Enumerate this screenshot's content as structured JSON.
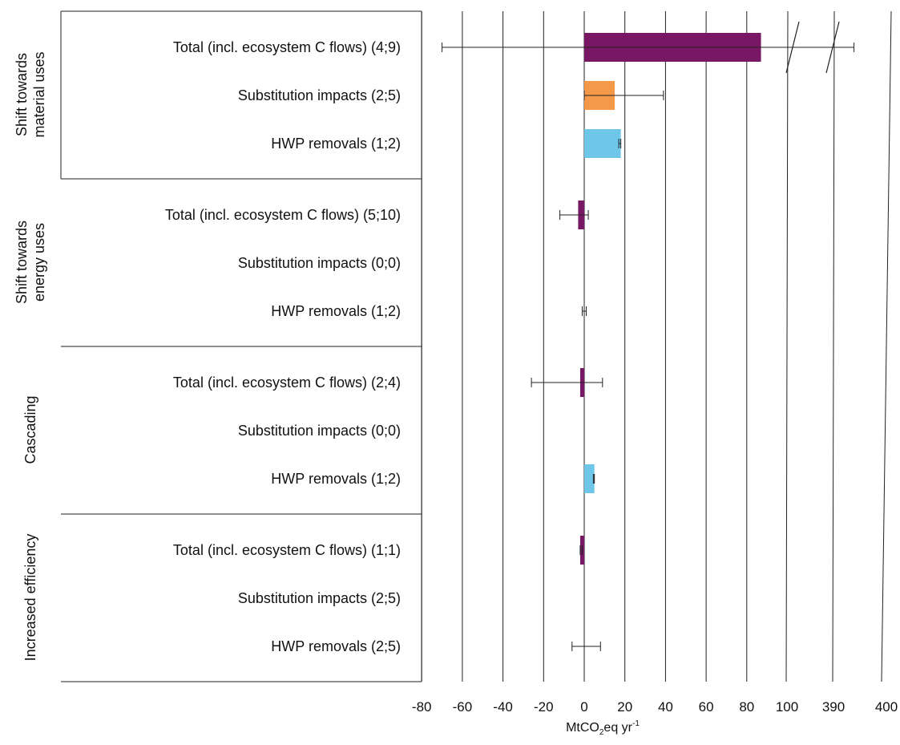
{
  "colors": {
    "total": "#781763",
    "substitution": "#f4984a",
    "hwp": "#6ec6e8",
    "lines": "#222222"
  },
  "chart_data": {
    "type": "bar",
    "orientation": "horizontal",
    "xlabel_main": "MtCO",
    "xlabel_sub": "2",
    "xlabel_tail": "eq yr",
    "xlabel_sup": "-1",
    "ticks": [
      {
        "label": "-80",
        "value": -80
      },
      {
        "label": "-60",
        "value": -60
      },
      {
        "label": "-40",
        "value": -40
      },
      {
        "label": "-20",
        "value": -20
      },
      {
        "label": "0",
        "value": 0
      },
      {
        "label": "20",
        "value": 20
      },
      {
        "label": "40",
        "value": 40
      },
      {
        "label": "60",
        "value": 60
      },
      {
        "label": "80",
        "value": 80
      },
      {
        "label": "100",
        "value": 100
      },
      {
        "label": "390",
        "value": 390
      },
      {
        "label": "400",
        "value": 400
      }
    ],
    "axis_break": {
      "from": 100,
      "to": 390
    },
    "grid": true,
    "groups": [
      {
        "name": "Shift towards material uses",
        "name_lines": [
          "Shift towards",
          "material uses"
        ],
        "rows": [
          {
            "label": "Total (incl. ecosystem C flows) (4;9)",
            "series": "total",
            "value": 87,
            "err_low": -70,
            "err_high": 394
          },
          {
            "label": "Substitution impacts (2;5)",
            "series": "substitution",
            "value": 15,
            "err_low": 0,
            "err_high": 39
          },
          {
            "label": "HWP removals (1;2)",
            "series": "hwp",
            "value": 18,
            "err_low": 17,
            "err_high": 18
          }
        ]
      },
      {
        "name": "Shift towards energy uses",
        "name_lines": [
          "Shift towards",
          "energy uses"
        ],
        "rows": [
          {
            "label": "Total (incl. ecosystem C flows) (5;10)",
            "series": "total",
            "value": -3,
            "err_low": -12,
            "err_high": 2
          },
          {
            "label": "Substitution impacts (0;0)",
            "series": "substitution",
            "value": null,
            "err_low": null,
            "err_high": null
          },
          {
            "label": "HWP removals (1;2)",
            "series": "hwp",
            "value": 0,
            "err_low": -1,
            "err_high": 1
          }
        ]
      },
      {
        "name": "Cascading",
        "name_lines": [
          "Cascading"
        ],
        "rows": [
          {
            "label": "Total (incl. ecosystem C flows) (2;4)",
            "series": "total",
            "value": -2,
            "err_low": -26,
            "err_high": 9
          },
          {
            "label": "Substitution impacts (0;0)",
            "series": "substitution",
            "value": null,
            "err_low": null,
            "err_high": null
          },
          {
            "label": "HWP removals (1;2)",
            "series": "hwp",
            "value": 5,
            "err_low": 4.5,
            "err_high": 5
          }
        ]
      },
      {
        "name": "Increased efficiency",
        "name_lines": [
          "Increased efficiency"
        ],
        "rows": [
          {
            "label": "Total (incl. ecosystem C flows) (1;1)",
            "series": "total",
            "value": -2,
            "err_low": -2,
            "err_high": -1
          },
          {
            "label": "Substitution impacts (2;5)",
            "series": "substitution",
            "value": null,
            "err_low": null,
            "err_high": null
          },
          {
            "label": "HWP removals (2;5)",
            "series": "hwp",
            "value": null,
            "err_low": -6,
            "err_high": 8
          }
        ]
      }
    ]
  }
}
